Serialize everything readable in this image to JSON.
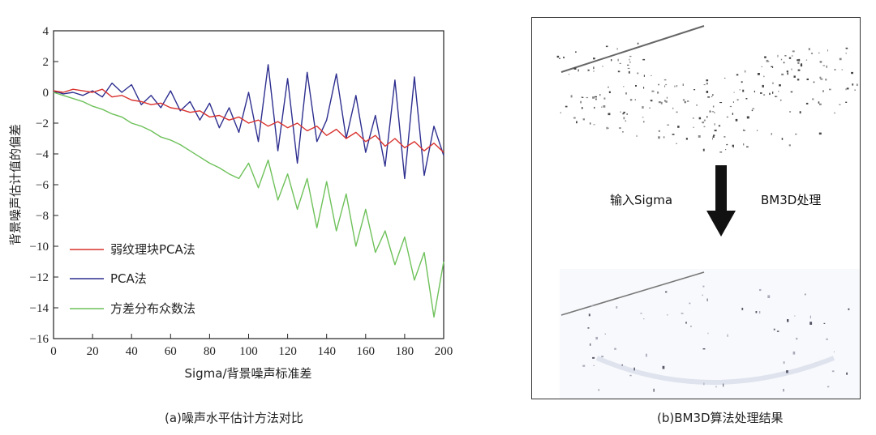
{
  "chart_data": {
    "type": "line",
    "xlabel": "Sigma/背景噪声标准差",
    "ylabel": "背景噪声估计值的偏差",
    "xlim": [
      0,
      200
    ],
    "ylim": [
      -16,
      4
    ],
    "xticks": [
      0,
      20,
      40,
      60,
      80,
      100,
      120,
      140,
      160,
      180,
      200
    ],
    "yticks": [
      4,
      2,
      0,
      -2,
      -4,
      -6,
      -8,
      -10,
      -12,
      -14,
      -16
    ],
    "ytick_labels": [
      "4",
      "2",
      "0",
      "−2",
      "−4",
      "−6",
      "−8",
      "−10",
      "−12",
      "−14",
      "−16"
    ],
    "legend_position": "bottom-left",
    "grid": false,
    "x": [
      0,
      5,
      10,
      15,
      20,
      25,
      30,
      35,
      40,
      45,
      50,
      55,
      60,
      65,
      70,
      75,
      80,
      85,
      90,
      95,
      100,
      105,
      110,
      115,
      120,
      125,
      130,
      135,
      140,
      145,
      150,
      155,
      160,
      165,
      170,
      175,
      180,
      185,
      190,
      195,
      200
    ],
    "series": [
      {
        "name": "弱纹理块PCA法",
        "color": "#d9322e",
        "values": [
          0.1,
          0.0,
          0.2,
          0.1,
          0.0,
          0.2,
          -0.3,
          -0.2,
          -0.5,
          -0.6,
          -0.8,
          -0.7,
          -1.0,
          -1.1,
          -1.3,
          -1.2,
          -1.6,
          -1.5,
          -1.8,
          -1.6,
          -2.0,
          -1.8,
          -2.2,
          -1.9,
          -2.3,
          -2.0,
          -2.5,
          -2.2,
          -2.8,
          -2.4,
          -3.0,
          -2.6,
          -3.2,
          -2.8,
          -3.5,
          -3.0,
          -3.6,
          -3.2,
          -3.8,
          -3.3,
          -3.9
        ]
      },
      {
        "name": "PCA法",
        "color": "#2e2f8f",
        "values": [
          0.1,
          -0.1,
          0.0,
          -0.2,
          0.1,
          -0.3,
          0.6,
          0.0,
          0.5,
          -0.8,
          -0.2,
          -1.0,
          0.1,
          -1.2,
          -0.6,
          -1.8,
          -0.7,
          -2.3,
          -1.0,
          -2.6,
          0.0,
          -3.2,
          1.8,
          -3.8,
          0.9,
          -4.6,
          1.3,
          -3.2,
          -1.8,
          1.2,
          -3.0,
          -0.2,
          -3.9,
          -1.5,
          -4.8,
          0.8,
          -5.6,
          1.0,
          -5.4,
          -2.2,
          -4.1
        ]
      },
      {
        "name": "方差分布众数法",
        "color": "#6ec15a",
        "values": [
          0.0,
          -0.2,
          -0.4,
          -0.6,
          -0.9,
          -1.1,
          -1.4,
          -1.6,
          -2.0,
          -2.2,
          -2.5,
          -2.9,
          -3.1,
          -3.4,
          -3.8,
          -4.2,
          -4.6,
          -4.9,
          -5.3,
          -5.6,
          -4.6,
          -6.2,
          -4.4,
          -7.0,
          -5.3,
          -7.6,
          -5.6,
          -8.8,
          -5.8,
          -9.0,
          -6.6,
          -10.0,
          -7.6,
          -10.4,
          -9.0,
          -11.2,
          -9.4,
          -12.2,
          -10.4,
          -14.6,
          -11.0
        ]
      }
    ]
  },
  "captions": {
    "left": "(a)噪声水平估计方法对比",
    "right": "(b)BM3D算法处理结果"
  },
  "panel_b": {
    "input_label": "输入Sigma",
    "process_label": "BM3D处理"
  }
}
